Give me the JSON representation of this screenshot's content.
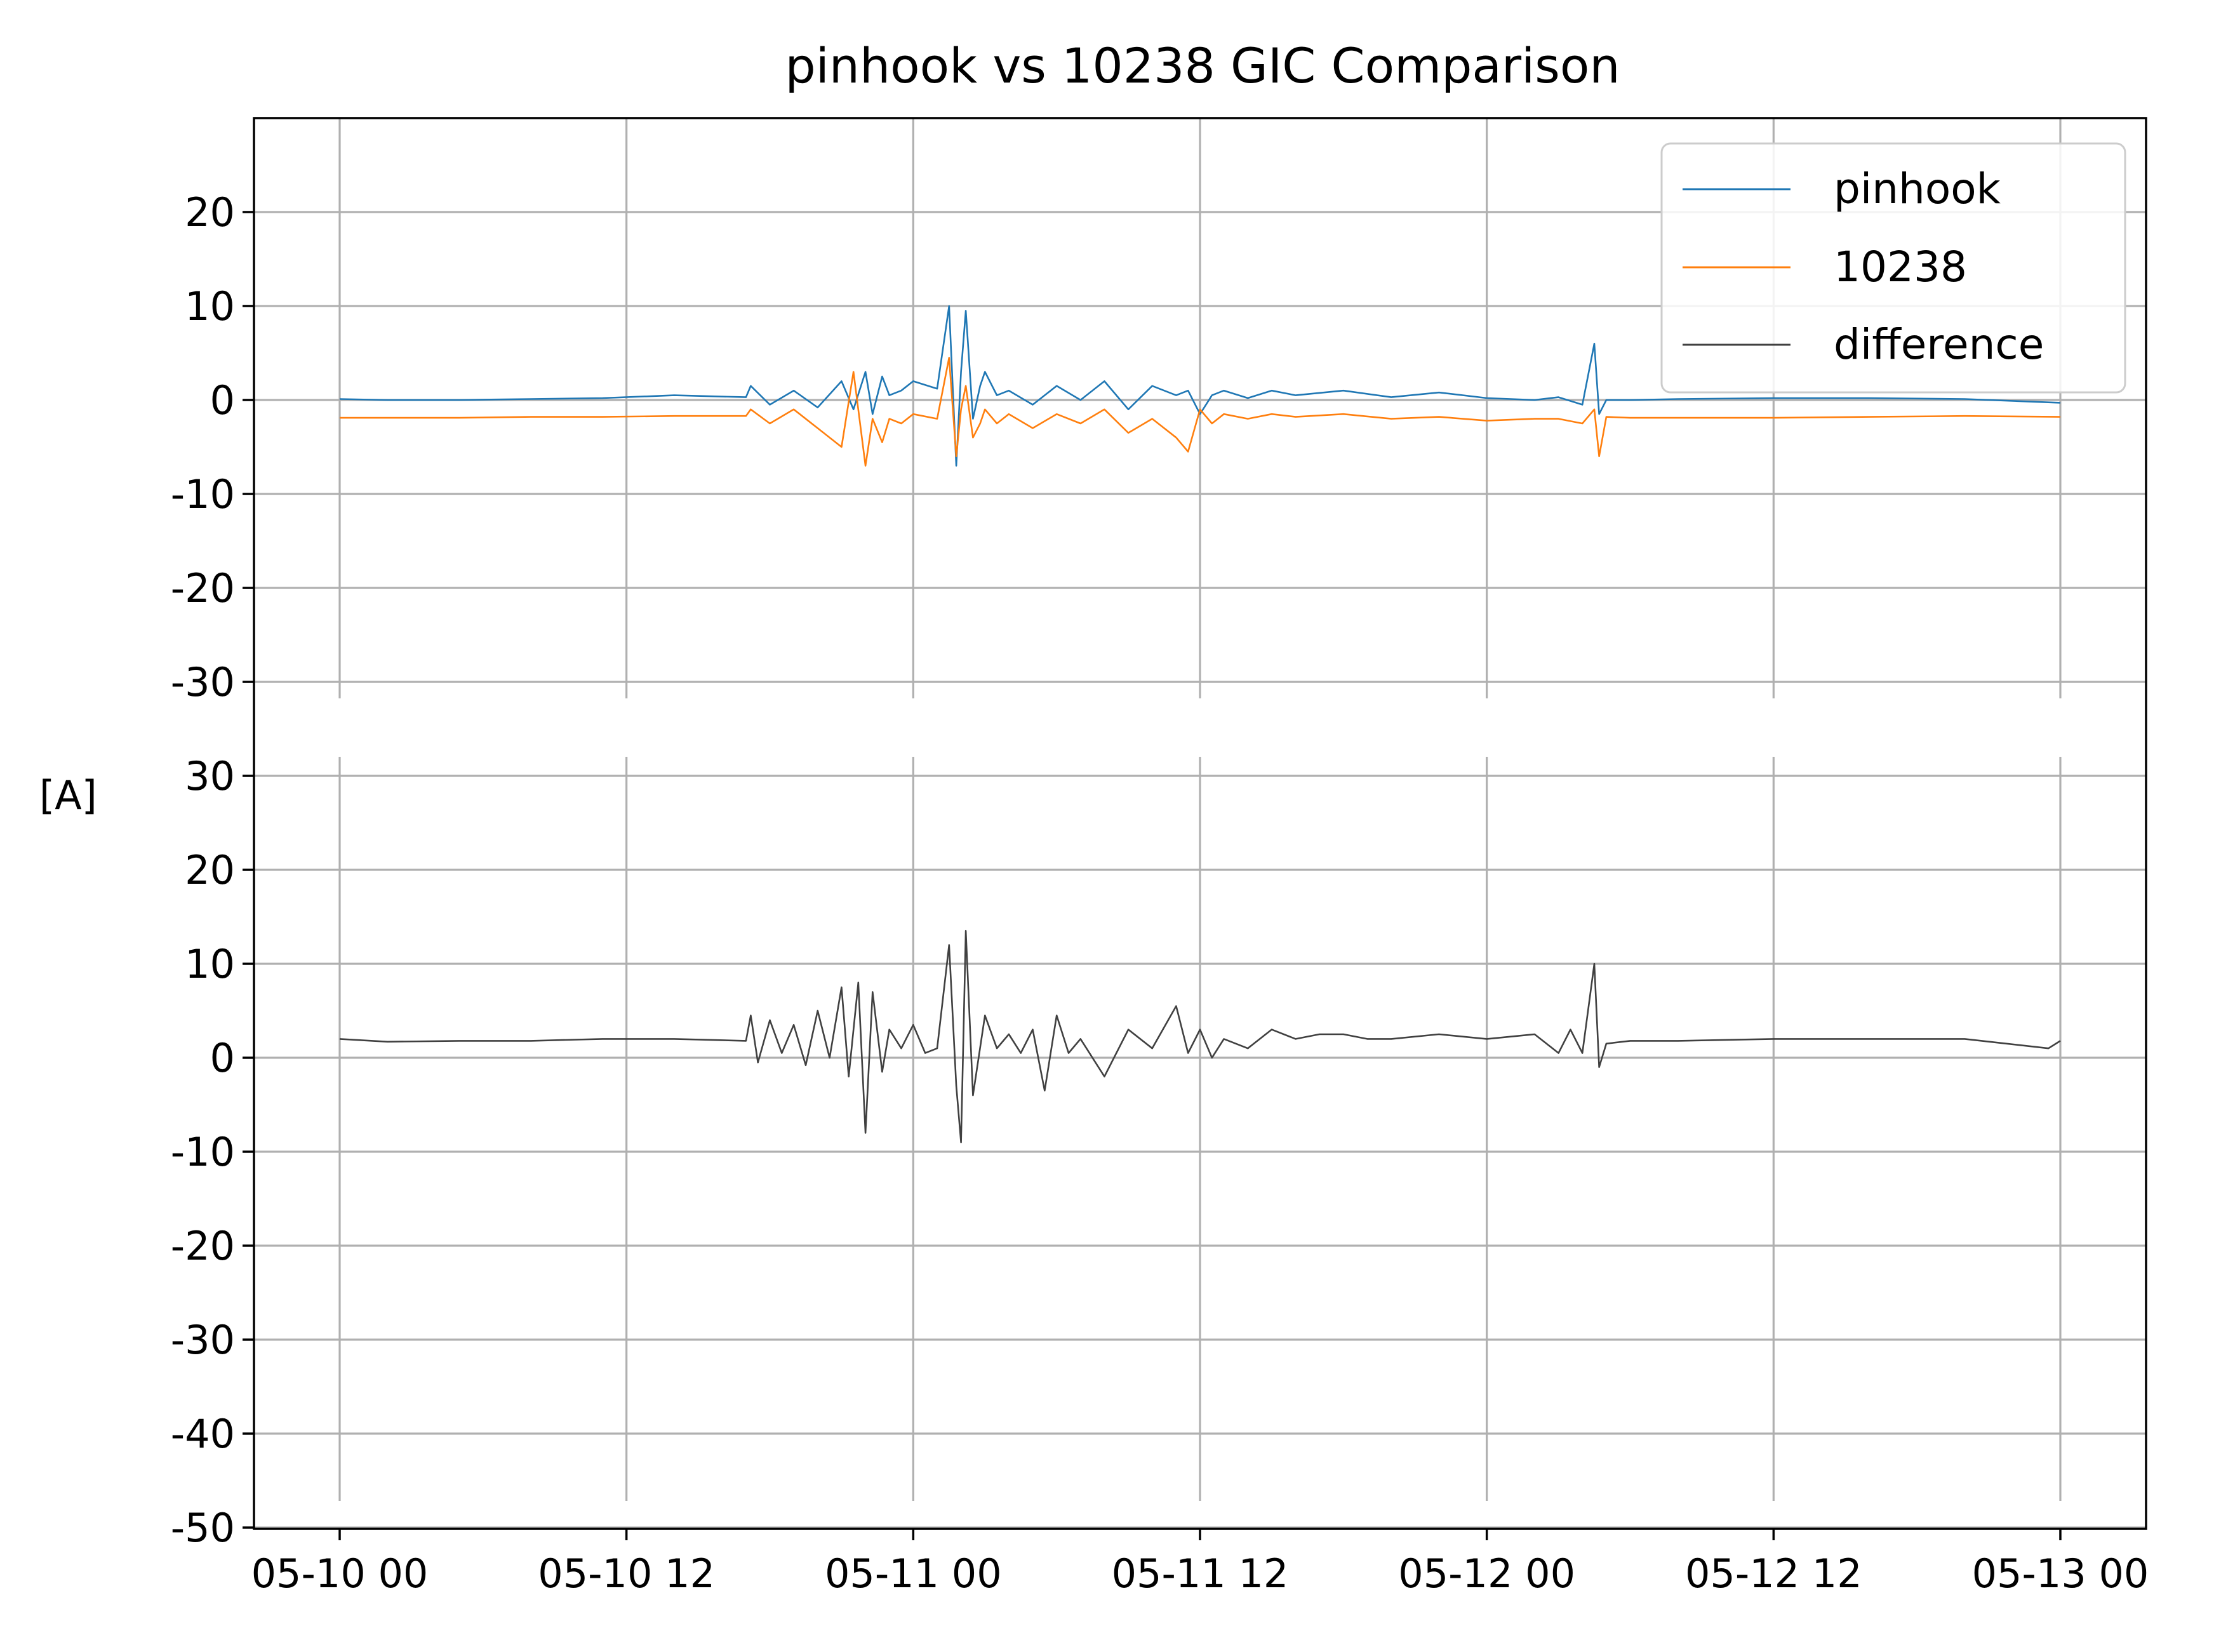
{
  "chart_data": {
    "type": "line",
    "title": "pinhook vs 10238 GIC Comparison",
    "ylabel": "[A]",
    "xlabel": "",
    "x_ticks": [
      "05-10 00",
      "05-10 12",
      "05-11 00",
      "05-11 12",
      "05-12 00",
      "05-12 12",
      "05-13 00"
    ],
    "x_range": [
      "2024-05-10 00:00",
      "2024-05-13 00:00"
    ],
    "grid": true,
    "legend_position": "top-right",
    "panels": [
      {
        "name": "top",
        "ylim": [
          -30,
          30
        ],
        "y_ticks": [
          20,
          10,
          0,
          -10,
          -20,
          -30
        ],
        "y_tick_labels": [
          "20",
          "10",
          "0",
          "-10",
          "-20",
          "-30"
        ],
        "series": [
          {
            "name": "pinhook",
            "color": "#1f77b4",
            "x_hours": [
              0,
              2,
              5,
              8,
              11,
              14,
              17,
              17.2,
              18,
              19,
              20,
              21,
              21.5,
              22,
              22.3,
              22.7,
              23,
              23.5,
              24,
              25,
              25.5,
              25.8,
              26,
              26.2,
              26.5,
              26.8,
              27,
              27.5,
              28,
              29,
              30,
              31,
              32,
              33,
              34,
              35,
              35.5,
              36,
              36.5,
              37,
              38,
              39,
              40,
              42,
              44,
              46,
              48,
              50,
              51,
              52,
              52.5,
              52.7,
              53,
              54,
              56,
              60,
              64,
              68,
              72
            ],
            "values": [
              0.1,
              0.0,
              0.0,
              0.1,
              0.2,
              0.5,
              0.3,
              1.5,
              -0.5,
              1.0,
              -0.8,
              2.0,
              -1.0,
              3.0,
              -1.5,
              2.5,
              0.5,
              1.0,
              2.0,
              1.2,
              10.0,
              -7.0,
              3.0,
              9.5,
              -2.0,
              1.5,
              3.0,
              0.5,
              1.0,
              -0.5,
              1.5,
              0.0,
              2.0,
              -1.0,
              1.5,
              0.5,
              1.0,
              -1.5,
              0.5,
              1.0,
              0.2,
              1.0,
              0.5,
              1.0,
              0.3,
              0.8,
              0.2,
              0.0,
              0.3,
              -0.5,
              6.0,
              -1.5,
              0.0,
              0.0,
              0.1,
              0.2,
              0.2,
              0.1,
              -0.3
            ]
          },
          {
            "name": "10238",
            "color": "#ff7f0e",
            "x_hours": [
              0,
              2,
              5,
              8,
              11,
              14,
              17,
              17.2,
              18,
              19,
              20,
              21,
              21.5,
              22,
              22.3,
              22.7,
              23,
              23.5,
              24,
              25,
              25.5,
              25.8,
              26,
              26.2,
              26.5,
              26.8,
              27,
              27.5,
              28,
              29,
              30,
              31,
              32,
              33,
              34,
              35,
              35.5,
              36,
              36.5,
              37,
              38,
              39,
              40,
              42,
              44,
              46,
              48,
              50,
              51,
              52,
              52.5,
              52.7,
              53,
              54,
              56,
              60,
              64,
              68,
              72
            ],
            "values": [
              -1.9,
              -1.9,
              -1.9,
              -1.8,
              -1.8,
              -1.7,
              -1.7,
              -1.0,
              -2.5,
              -1.0,
              -3.0,
              -5.0,
              3.0,
              -7.0,
              -2.0,
              -4.5,
              -2.0,
              -2.5,
              -1.5,
              -2.0,
              4.5,
              -6.0,
              -1.0,
              1.5,
              -4.0,
              -2.5,
              -1.0,
              -2.5,
              -1.5,
              -3.0,
              -1.5,
              -2.5,
              -1.0,
              -3.5,
              -2.0,
              -4.0,
              -5.5,
              -1.0,
              -2.5,
              -1.5,
              -2.0,
              -1.5,
              -1.8,
              -1.5,
              -2.0,
              -1.8,
              -2.2,
              -2.0,
              -2.0,
              -2.5,
              -1.0,
              -6.0,
              -1.8,
              -1.9,
              -1.9,
              -1.9,
              -1.8,
              -1.7,
              -1.8
            ]
          }
        ]
      },
      {
        "name": "bottom",
        "ylim": [
          -50,
          30
        ],
        "y_ticks": [
          30,
          20,
          10,
          0,
          -10,
          -20,
          -30,
          -40,
          -50
        ],
        "y_tick_labels": [
          "30",
          "20",
          "10",
          "0",
          "-10",
          "-20",
          "-30",
          "-40",
          "-50"
        ],
        "series": [
          {
            "name": "difference",
            "color": "#404040",
            "x_hours": [
              0,
              2,
              5,
              8,
              11,
              14,
              17,
              17.2,
              17.5,
              18,
              18.5,
              19,
              19.5,
              20,
              20.5,
              21,
              21.3,
              21.7,
              22,
              22.3,
              22.7,
              23,
              23.5,
              24,
              24.5,
              25,
              25.5,
              25.8,
              26,
              26.2,
              26.5,
              27,
              27.5,
              28,
              28.5,
              29,
              29.5,
              30,
              30.5,
              31,
              32,
              33,
              34,
              35,
              35.5,
              36,
              36.5,
              37,
              38,
              39,
              40,
              41,
              42,
              43,
              44,
              46,
              48,
              50,
              51,
              51.5,
              52,
              52.5,
              52.7,
              53,
              54,
              56,
              60,
              64,
              68,
              71.5,
              72
            ],
            "values": [
              2.0,
              1.7,
              1.8,
              1.8,
              2.0,
              2.0,
              1.8,
              4.5,
              -0.5,
              4.0,
              0.5,
              3.5,
              -0.8,
              5.0,
              0.0,
              7.5,
              -2.0,
              8.0,
              -8.0,
              7.0,
              -1.5,
              3.0,
              1.0,
              3.5,
              0.5,
              1.0,
              12.0,
              -3.0,
              -9.0,
              13.5,
              -4.0,
              4.5,
              1.0,
              2.5,
              0.5,
              3.0,
              -3.5,
              4.5,
              0.5,
              2.0,
              -2.0,
              3.0,
              1.0,
              5.5,
              0.5,
              3.0,
              0.0,
              2.0,
              1.0,
              3.0,
              2.0,
              2.5,
              2.5,
              2.0,
              2.0,
              2.5,
              2.0,
              2.5,
              0.5,
              3.0,
              0.5,
              10.0,
              -1.0,
              1.5,
              1.8,
              1.8,
              2.0,
              2.0,
              2.0,
              1.0,
              1.8
            ]
          }
        ]
      }
    ],
    "legend": [
      "pinhook",
      "10238",
      "difference"
    ]
  }
}
